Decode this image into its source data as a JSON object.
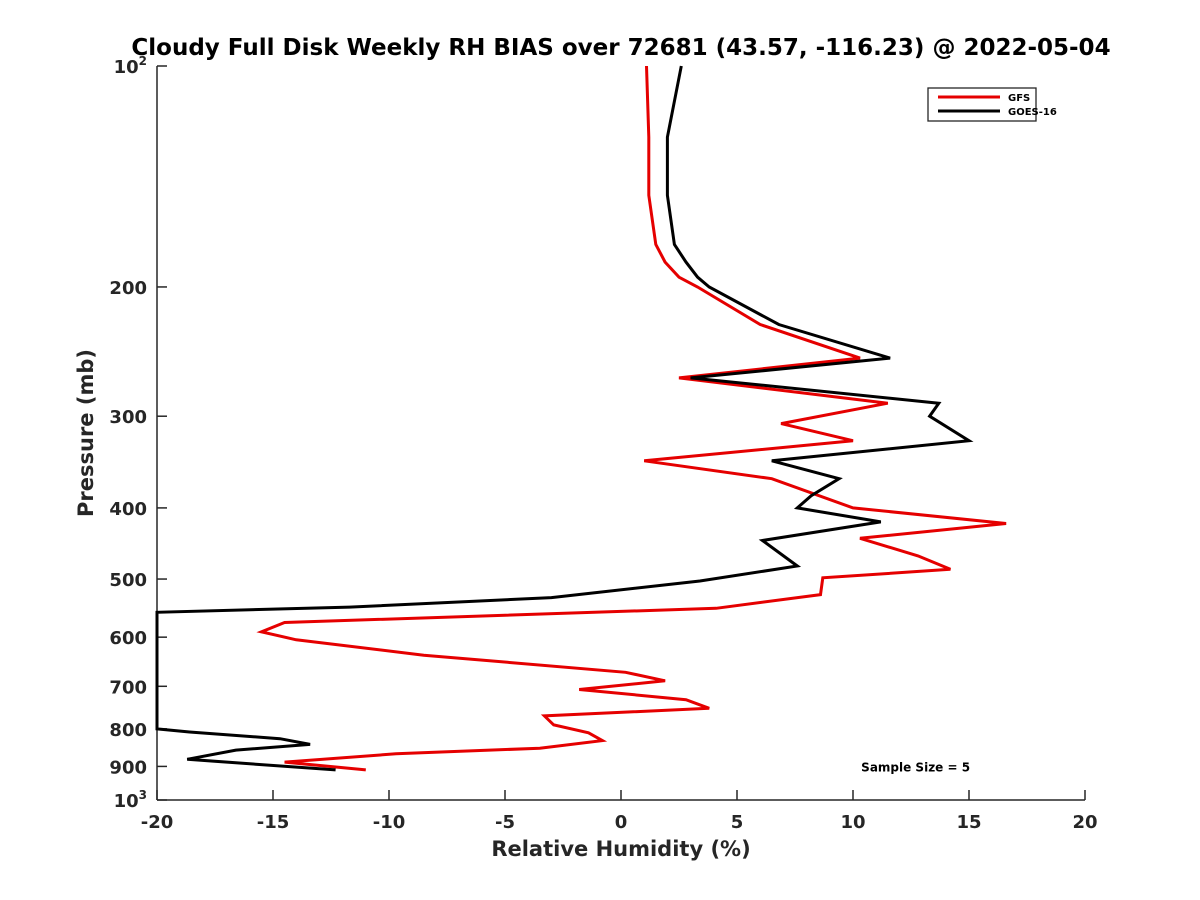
{
  "chart_data": {
    "type": "line",
    "title": "Cloudy Full Disk Weekly RH BIAS over 72681 (43.57, -116.23) @ 2022-05-04",
    "xlabel": "Relative Humidity (%)",
    "ylabel": "Pressure (mb)",
    "xlim": [
      -20,
      20
    ],
    "ylim": [
      100,
      1000
    ],
    "y_scale": "log",
    "y_reversed": true,
    "grid": false,
    "legend_position": "top-right",
    "x_ticks": [
      "-20",
      "-15",
      "-10",
      "-5",
      "0",
      "5",
      "10",
      "15",
      "20"
    ],
    "y_ticks": [
      {
        "value": 100,
        "base": "10",
        "exp": "2"
      },
      {
        "value": 200,
        "label": "200"
      },
      {
        "value": 300,
        "label": "300"
      },
      {
        "value": 400,
        "label": "400"
      },
      {
        "value": 500,
        "label": "500"
      },
      {
        "value": 600,
        "label": "600"
      },
      {
        "value": 700,
        "label": "700"
      },
      {
        "value": 800,
        "label": "800"
      },
      {
        "value": 900,
        "label": "900"
      },
      {
        "value": 1000,
        "base": "10",
        "exp": "3"
      }
    ],
    "series": [
      {
        "name": "GFS",
        "color": "#e50000",
        "points": [
          [
            1.1,
            100
          ],
          [
            1.2,
            125
          ],
          [
            1.2,
            150
          ],
          [
            1.5,
            175
          ],
          [
            1.9,
            185
          ],
          [
            2.5,
            194
          ],
          [
            3.3,
            200
          ],
          [
            6.0,
            225
          ],
          [
            10.3,
            250
          ],
          [
            2.5,
            266
          ],
          [
            11.5,
            288
          ],
          [
            6.9,
            307
          ],
          [
            10.0,
            324
          ],
          [
            1.0,
            345
          ],
          [
            6.5,
            365
          ],
          [
            10.0,
            400
          ],
          [
            16.6,
            420
          ],
          [
            10.3,
            440
          ],
          [
            12.8,
            465
          ],
          [
            14.2,
            485
          ],
          [
            8.7,
            498
          ],
          [
            8.6,
            525
          ],
          [
            4.1,
            548
          ],
          [
            -14.5,
            573
          ],
          [
            -15.5,
            590
          ],
          [
            -14.0,
            605
          ],
          [
            -8.5,
            635
          ],
          [
            0.2,
            670
          ],
          [
            1.9,
            688
          ],
          [
            -1.8,
            707
          ],
          [
            2.8,
            730
          ],
          [
            3.8,
            750
          ],
          [
            -3.3,
            768
          ],
          [
            -2.9,
            790
          ],
          [
            -1.4,
            810
          ],
          [
            -0.8,
            830
          ],
          [
            -3.5,
            850
          ],
          [
            -9.7,
            865
          ],
          [
            -14.5,
            888
          ],
          [
            -11.0,
            910
          ]
        ]
      },
      {
        "name": "GOES-16",
        "color": "#000000",
        "points": [
          [
            2.6,
            100
          ],
          [
            2.0,
            125
          ],
          [
            2.0,
            150
          ],
          [
            2.3,
            175
          ],
          [
            2.8,
            185
          ],
          [
            3.3,
            194
          ],
          [
            3.8,
            200
          ],
          [
            6.8,
            225
          ],
          [
            11.6,
            250
          ],
          [
            3.0,
            266
          ],
          [
            13.7,
            288
          ],
          [
            13.3,
            300
          ],
          [
            15.0,
            324
          ],
          [
            6.5,
            345
          ],
          [
            9.4,
            365
          ],
          [
            8.2,
            385
          ],
          [
            7.6,
            400
          ],
          [
            11.2,
            418
          ],
          [
            6.1,
            443
          ],
          [
            7.6,
            480
          ],
          [
            3.4,
            503
          ],
          [
            -3.0,
            530
          ],
          [
            -11.7,
            546
          ],
          [
            -20.0,
            555
          ],
          [
            -20.0,
            800
          ],
          [
            -18.6,
            808
          ],
          [
            -14.7,
            825
          ],
          [
            -13.4,
            840
          ],
          [
            -16.6,
            855
          ],
          [
            -18.7,
            880
          ],
          [
            -12.3,
            910
          ]
        ]
      }
    ],
    "annotations": [
      {
        "text": "Sample Size = 5",
        "x": 12.7,
        "y": 900
      }
    ]
  }
}
